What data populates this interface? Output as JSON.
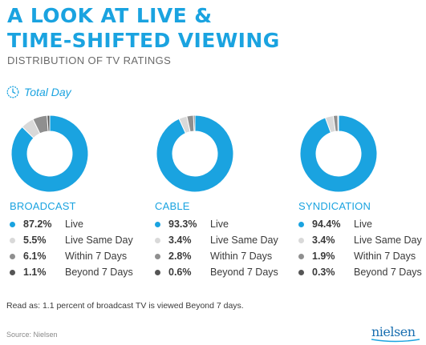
{
  "title": {
    "line1": "A LOOK AT LIVE &",
    "line2": "TIME-SHIFTED VIEWING"
  },
  "subtitle": "DISTRIBUTION OF TV RATINGS",
  "period": {
    "label": "Total Day",
    "icon": "clock-icon"
  },
  "colors": {
    "accent": "#1aa3e0",
    "Live": "#1aa3e0",
    "Live Same Day": "#d9d9d9",
    "Within 7 Days": "#8f8f8f",
    "Beyond 7 Days": "#555555"
  },
  "chart_data": [
    {
      "type": "pie",
      "title": "BROADCAST",
      "labels": [
        "Live",
        "Live Same Day",
        "Within 7 Days",
        "Beyond 7 Days"
      ],
      "values": [
        87.2,
        5.5,
        6.1,
        1.1
      ],
      "display": [
        "87.2%",
        "5.5%",
        "6.1%",
        "1.1%"
      ]
    },
    {
      "type": "pie",
      "title": "CABLE",
      "labels": [
        "Live",
        "Live Same Day",
        "Within 7 Days",
        "Beyond 7 Days"
      ],
      "values": [
        93.3,
        3.4,
        2.8,
        0.6
      ],
      "display": [
        "93.3%",
        "3.4%",
        "2.8%",
        "0.6%"
      ]
    },
    {
      "type": "pie",
      "title": "SYNDICATION",
      "labels": [
        "Live",
        "Live Same Day",
        "Within 7 Days",
        "Beyond 7 Days"
      ],
      "values": [
        94.4,
        3.4,
        1.9,
        0.3
      ],
      "display": [
        "94.4%",
        "3.4%",
        "1.9%",
        "0.3%"
      ]
    }
  ],
  "note": "Read as: 1.1 percent of broadcast TV is viewed Beyond 7 days.",
  "source": "Source: Nielsen",
  "logo": {
    "text": "nielsen"
  }
}
